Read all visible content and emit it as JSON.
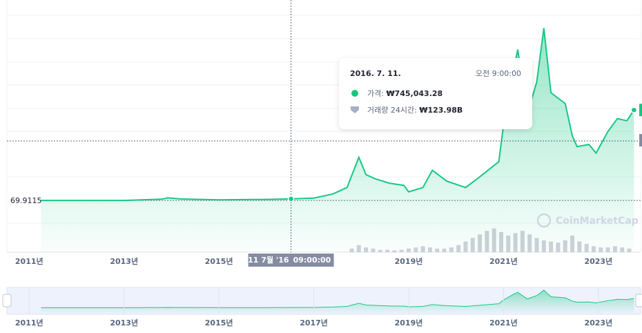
{
  "chart_data": {
    "type": "line",
    "x": [
      2011.25,
      2012.0,
      2013.0,
      2013.8,
      2013.92,
      2014.2,
      2015.0,
      2016.0,
      2016.52,
      2017.0,
      2017.4,
      2017.7,
      2017.95,
      2018.1,
      2018.3,
      2018.6,
      2018.9,
      2019.0,
      2019.3,
      2019.5,
      2019.8,
      2020.2,
      2020.5,
      2020.9,
      2021.0,
      2021.2,
      2021.3,
      2021.5,
      2021.7,
      2021.85,
      2022.0,
      2022.3,
      2022.45,
      2022.55,
      2022.8,
      2022.95,
      2023.2,
      2023.4,
      2023.6,
      2023.75
    ],
    "series": [
      {
        "color": "#16c784",
        "values": [
          1000,
          5000,
          15000,
          600000,
          1200000,
          700000,
          300000,
          500000,
          745043.28,
          1100000,
          3000000,
          6000000,
          20000000,
          12000000,
          10000000,
          8000000,
          7000000,
          4000000,
          6000000,
          14000000,
          9000000,
          6000000,
          11000000,
          18000000,
          35000000,
          60000000,
          70000000,
          40000000,
          55000000,
          80000000,
          50000000,
          45000000,
          30000000,
          25000000,
          26000000,
          22000000,
          32000000,
          38000000,
          37000000,
          42000000
        ]
      }
    ],
    "volume": {
      "color": "#c3c6cf",
      "axis": "y2",
      "x": [
        2017.8,
        2017.95,
        2018.1,
        2018.25,
        2018.4,
        2018.55,
        2018.7,
        2018.85,
        2019.0,
        2019.15,
        2019.3,
        2019.45,
        2019.6,
        2019.75,
        2019.9,
        2020.05,
        2020.2,
        2020.35,
        2020.5,
        2020.65,
        2020.8,
        2020.95,
        2021.1,
        2021.25,
        2021.4,
        2021.55,
        2021.7,
        2021.85,
        2022.0,
        2022.15,
        2022.3,
        2022.45,
        2022.6,
        2022.75,
        2022.9,
        2023.05,
        2023.2,
        2023.35,
        2023.5,
        2023.65
      ],
      "values": [
        300000000000,
        600000000000,
        400000000000,
        300000000000,
        200000000000,
        200000000000,
        150000000000,
        200000000000,
        300000000000,
        400000000000,
        500000000000,
        400000000000,
        300000000000,
        300000000000,
        400000000000,
        600000000000,
        900000000000,
        1200000000000,
        1500000000000,
        1800000000000,
        2000000000000,
        1700000000000,
        1400000000000,
        1600000000000,
        1800000000000,
        1500000000000,
        1200000000000,
        1000000000000,
        900000000000,
        800000000000,
        1000000000000,
        1400000000000,
        900000000000,
        700000000000,
        500000000000,
        400000000000,
        400000000000,
        500000000000,
        400000000000,
        300000000000
      ]
    },
    "xlim": [
      2010.53,
      2023.89
    ],
    "ylim": [
      -24000000,
      86000000
    ],
    "y2lim": [
      0,
      20000000000000
    ],
    "xticks": [
      {
        "value": 2011,
        "label": "2011년"
      },
      {
        "value": 2013,
        "label": "2013년"
      },
      {
        "value": 2015,
        "label": "2015년"
      },
      {
        "value": 2017,
        "label": "2017년"
      },
      {
        "value": 2019,
        "label": "2019년"
      },
      {
        "value": 2021,
        "label": "2021년"
      },
      {
        "value": 2023,
        "label": "2023년"
      }
    ],
    "reference_line": {
      "value": 69.9115,
      "label": "69.9115"
    },
    "crosshair": {
      "x": 2016.52,
      "date_label": "11 7월 '16",
      "time_label": "09:00:00"
    },
    "tooltip": {
      "date": "2016. 7. 11.",
      "time": "오전 9:00:00",
      "price_label": "가격:",
      "price": "₩745,043.28",
      "volume_label": "거래량 24시간:",
      "volume": "₩123.98B"
    },
    "watermark": "CoinMarketCap"
  }
}
